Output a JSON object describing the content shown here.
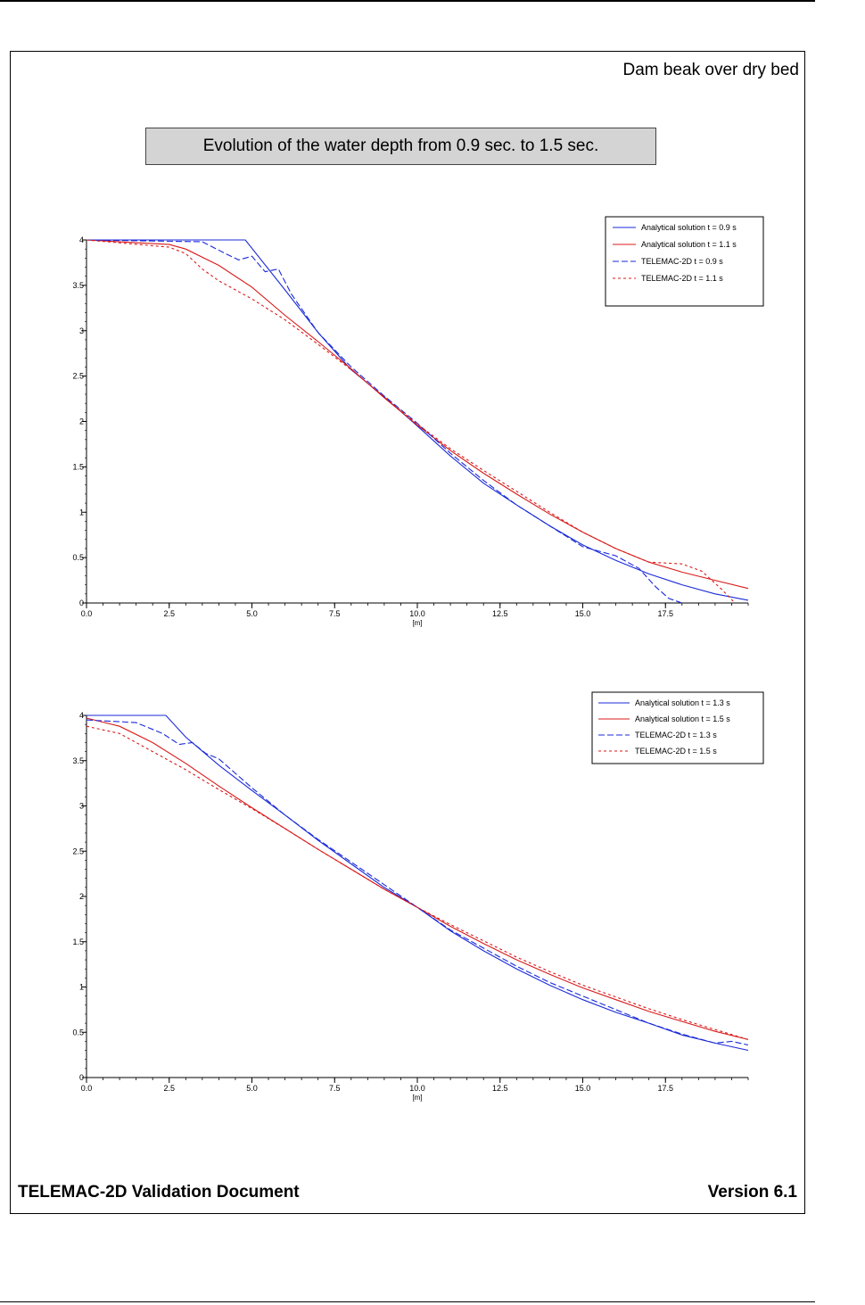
{
  "page": {
    "doc_title": "Dam beak over dry bed",
    "banner": "Evolution of the water depth from 0.9 sec. to 1.5 sec.",
    "footer_left": "TELEMAC-2D Validation Document",
    "footer_right": "Version 6.1"
  },
  "colors": {
    "blue": "#1a2ad8",
    "red": "#d81a1a",
    "axis": "#000000"
  },
  "chart_data": [
    {
      "type": "line",
      "xlabel": "[m]",
      "ylabel": "",
      "xlim": [
        0,
        20
      ],
      "ylim": [
        0,
        4
      ],
      "xticks": [
        0,
        2.5,
        5,
        7.5,
        10,
        12.5,
        15,
        17.5
      ],
      "xtick_labels": [
        "0.0",
        "2.5",
        "5.0",
        "7.5",
        "10.0",
        "12.5",
        "15.0",
        "17.5"
      ],
      "yticks": [
        0,
        0.5,
        1,
        1.5,
        2,
        2.5,
        3,
        3.5,
        4
      ],
      "ytick_labels": [
        "0",
        "0.5",
        "1",
        "1.5",
        "2",
        "2.5",
        "3",
        "3.5",
        "4"
      ],
      "legend_position": "top-right",
      "series": [
        {
          "name": "Analytical solution t = 0.9 s",
          "color": "#1a2ad8",
          "dash": "solid",
          "x": [
            0,
            4.8,
            6,
            7,
            8,
            9,
            10,
            11,
            12,
            13,
            14,
            15,
            16,
            17,
            18,
            19,
            20
          ],
          "y": [
            4.0,
            4.0,
            3.45,
            2.98,
            2.57,
            2.27,
            1.95,
            1.62,
            1.32,
            1.08,
            0.85,
            0.64,
            0.47,
            0.32,
            0.2,
            0.1,
            0.03
          ]
        },
        {
          "name": "Analytical solution t = 1.1 s",
          "color": "#d81a1a",
          "dash": "solid",
          "x": [
            0,
            2.5,
            3,
            4,
            5,
            6,
            7,
            8,
            9,
            10,
            11,
            12,
            13,
            14,
            15,
            16,
            17,
            18,
            19,
            20
          ],
          "y": [
            4.0,
            3.95,
            3.9,
            3.72,
            3.48,
            3.17,
            2.88,
            2.58,
            2.26,
            1.96,
            1.68,
            1.43,
            1.2,
            0.98,
            0.78,
            0.6,
            0.45,
            0.34,
            0.25,
            0.16
          ]
        },
        {
          "name": "TELEMAC-2D t = 0.9 s",
          "color": "#1a2ad8",
          "dash": "7,3",
          "x": [
            0,
            3.5,
            4.2,
            4.6,
            5,
            5.4,
            5.8,
            6.2,
            7,
            8,
            9,
            10,
            11,
            12,
            13,
            14,
            15,
            16,
            16.7,
            17.2,
            17.6,
            18
          ],
          "y": [
            4.0,
            3.98,
            3.85,
            3.78,
            3.82,
            3.65,
            3.68,
            3.4,
            2.98,
            2.6,
            2.28,
            1.98,
            1.65,
            1.35,
            1.08,
            0.85,
            0.62,
            0.52,
            0.38,
            0.18,
            0.05,
            0.0
          ]
        },
        {
          "name": "TELEMAC-2D t = 1.1 s",
          "color": "#d81a1a",
          "dash": "3,3",
          "x": [
            0,
            2.5,
            3,
            3.5,
            4,
            5,
            6,
            7,
            8,
            9,
            10,
            11,
            12,
            13,
            14,
            15,
            16,
            17,
            18,
            18.6,
            19.2,
            19.6
          ],
          "y": [
            4.0,
            3.92,
            3.85,
            3.68,
            3.55,
            3.35,
            3.12,
            2.85,
            2.57,
            2.27,
            1.97,
            1.7,
            1.46,
            1.23,
            1.0,
            0.78,
            0.6,
            0.45,
            0.43,
            0.35,
            0.15,
            0.0
          ]
        }
      ]
    },
    {
      "type": "line",
      "xlabel": "[m]",
      "ylabel": "",
      "xlim": [
        0,
        20
      ],
      "ylim": [
        0,
        4
      ],
      "xticks": [
        0,
        2.5,
        5,
        7.5,
        10,
        12.5,
        15,
        17.5
      ],
      "xtick_labels": [
        "0.0",
        "2.5",
        "5.0",
        "7.5",
        "10.0",
        "12.5",
        "15.0",
        "17.5"
      ],
      "yticks": [
        0,
        0.5,
        1,
        1.5,
        2,
        2.5,
        3,
        3.5,
        4
      ],
      "ytick_labels": [
        "0",
        "0.5",
        "1",
        "1.5",
        "2",
        "2.5",
        "3",
        "3.5",
        "4"
      ],
      "legend_position": "top-right",
      "series": [
        {
          "name": "Analytical solution t = 1.3 s",
          "color": "#1a2ad8",
          "dash": "solid",
          "x": [
            0,
            2.4,
            3,
            4,
            5,
            6,
            7,
            8,
            9,
            10,
            11,
            12,
            13,
            14,
            15,
            16,
            17,
            18,
            19,
            20
          ],
          "y": [
            4.0,
            4.0,
            3.76,
            3.45,
            3.17,
            2.9,
            2.62,
            2.36,
            2.1,
            1.88,
            1.62,
            1.4,
            1.2,
            1.02,
            0.86,
            0.72,
            0.6,
            0.47,
            0.38,
            0.3
          ]
        },
        {
          "name": "Analytical solution t = 1.5 s",
          "color": "#d81a1a",
          "dash": "solid",
          "x": [
            0,
            1,
            2,
            3,
            4,
            5,
            6,
            7,
            8,
            9,
            10,
            11,
            12,
            13,
            14,
            15,
            16,
            17,
            18,
            19,
            20
          ],
          "y": [
            3.97,
            3.88,
            3.7,
            3.47,
            3.22,
            2.98,
            2.75,
            2.52,
            2.3,
            2.08,
            1.88,
            1.67,
            1.48,
            1.3,
            1.14,
            0.99,
            0.86,
            0.73,
            0.62,
            0.51,
            0.42
          ]
        },
        {
          "name": "TELEMAC-2D t = 1.3 s",
          "color": "#1a2ad8",
          "dash": "7,3",
          "x": [
            0,
            1.5,
            2.3,
            2.8,
            3.2,
            3.6,
            4,
            5,
            6,
            7,
            8,
            9,
            10,
            11,
            12,
            13,
            14,
            15,
            16,
            17,
            18,
            19,
            19.5,
            20
          ],
          "y": [
            3.95,
            3.92,
            3.8,
            3.68,
            3.7,
            3.58,
            3.52,
            3.2,
            2.9,
            2.63,
            2.38,
            2.13,
            1.88,
            1.63,
            1.43,
            1.23,
            1.05,
            0.9,
            0.75,
            0.6,
            0.48,
            0.38,
            0.4,
            0.36
          ]
        },
        {
          "name": "TELEMAC-2D t = 1.5 s",
          "color": "#d81a1a",
          "dash": "3,3",
          "x": [
            0,
            1,
            2,
            3,
            4,
            5,
            6,
            7,
            8,
            9,
            10,
            11,
            12,
            13,
            14,
            15,
            16,
            17,
            18,
            19,
            20
          ],
          "y": [
            3.88,
            3.8,
            3.6,
            3.4,
            3.18,
            2.97,
            2.75,
            2.52,
            2.3,
            2.08,
            1.88,
            1.69,
            1.51,
            1.33,
            1.17,
            1.02,
            0.89,
            0.76,
            0.64,
            0.53,
            0.42
          ]
        }
      ]
    }
  ]
}
